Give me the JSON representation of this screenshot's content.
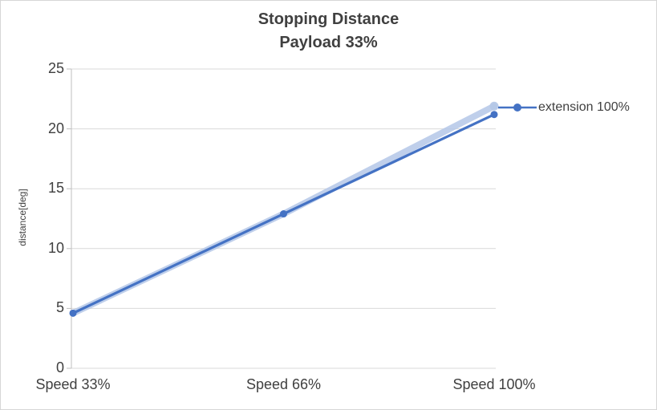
{
  "title": {
    "line1": "Stopping Distance",
    "line2": "Payload 33%"
  },
  "legend": {
    "label": "extension 100%"
  },
  "colors": {
    "grid": "#d9d9d9",
    "axis": "#bfbfbf",
    "text": "#404040",
    "series": "#4472c4",
    "band": "#b4c7e7"
  },
  "chart_data": {
    "type": "line",
    "title": "Stopping Distance",
    "subtitle": "Payload 33%",
    "categories": [
      "Speed 33%",
      "Speed 66%",
      "Speed 100%"
    ],
    "series": [
      {
        "name": "extension 100%",
        "color": "#4472c4",
        "values": [
          4.6,
          12.9,
          21.2
        ]
      }
    ],
    "band": {
      "name": "shaded-spread-band",
      "color": "#b4c7e7",
      "values": [
        4.6,
        12.9,
        21.9
      ]
    },
    "xlabel": "",
    "ylabel": "distance[deg]",
    "ylim": [
      0,
      25
    ],
    "yticks": [
      0,
      5,
      10,
      15,
      20,
      25
    ],
    "grid": true,
    "legend_position": "right",
    "marker": "circle"
  }
}
